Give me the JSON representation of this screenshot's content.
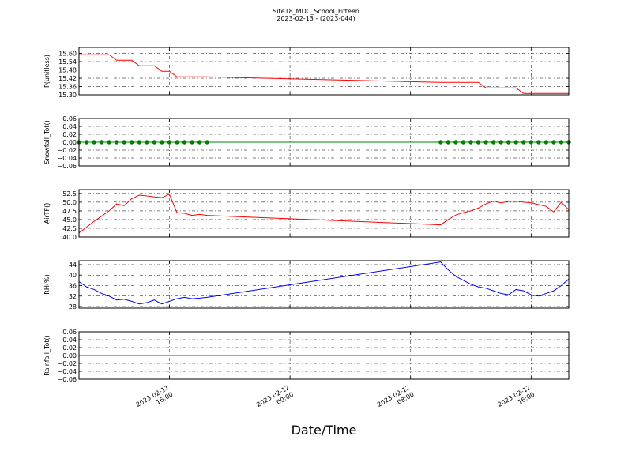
{
  "figure": {
    "title": "Site18_MDC_School_Fifteen",
    "subtitle": "2023-02-13 - (2023-044)",
    "xlabel": "Date/Time",
    "xlim": [
      "2023-02-11 10:00",
      "2023-02-12 18:30"
    ],
    "xticks": [
      {
        "value": "2023-02-11 16:00",
        "label": "2023-02-11\n16:00"
      },
      {
        "value": "2023-02-12 00:00",
        "label": "2023-02-12\n00:00"
      },
      {
        "value": "2023-02-12 08:00",
        "label": "2023-02-12\n08:00"
      },
      {
        "value": "2023-02-12 16:00",
        "label": "2023-02-12\n16:00"
      }
    ],
    "grid": true
  },
  "chart_data": [
    {
      "type": "line",
      "ylabel": "P(unitless)",
      "x": [
        "2023-02-11 10:00",
        "2023-02-11 10:30",
        "2023-02-11 11:00",
        "2023-02-11 11:30",
        "2023-02-11 12:00",
        "2023-02-11 12:30",
        "2023-02-11 13:00",
        "2023-02-11 13:30",
        "2023-02-11 14:00",
        "2023-02-11 14:30",
        "2023-02-11 15:00",
        "2023-02-11 15:30",
        "2023-02-11 16:00",
        "2023-02-11 16:30",
        "2023-02-11 17:00",
        "2023-02-11 17:30",
        "2023-02-11 18:00",
        "2023-02-11 18:30",
        "2023-02-12 10:00",
        "2023-02-12 10:30",
        "2023-02-12 11:00",
        "2023-02-12 11:30",
        "2023-02-12 12:00",
        "2023-02-12 12:30",
        "2023-02-12 13:00",
        "2023-02-12 13:30",
        "2023-02-12 14:00",
        "2023-02-12 14:30",
        "2023-02-12 15:00",
        "2023-02-12 15:30",
        "2023-02-12 16:00",
        "2023-02-12 16:30",
        "2023-02-12 17:00",
        "2023-02-12 17:30",
        "2023-02-12 18:00",
        "2023-02-12 18:30"
      ],
      "series": [
        {
          "color": "#ff0000",
          "markers": false,
          "values": [
            15.59,
            15.59,
            15.59,
            15.59,
            15.59,
            15.55,
            15.55,
            15.55,
            15.51,
            15.51,
            15.51,
            15.47,
            15.47,
            15.43,
            15.43,
            15.43,
            15.43,
            15.43,
            15.39,
            15.39,
            15.39,
            15.39,
            15.39,
            15.39,
            15.35,
            15.35,
            15.35,
            15.35,
            15.35,
            15.31,
            15.31,
            15.31,
            15.31,
            15.31,
            15.31,
            15.31
          ]
        }
      ],
      "ylim": [
        15.3,
        15.643
      ],
      "yticks": [
        {
          "value": 15.3,
          "label": "15.30"
        },
        {
          "value": 15.36,
          "label": "15.36"
        },
        {
          "value": 15.42,
          "label": "15.42"
        },
        {
          "value": 15.48,
          "label": "15.48"
        },
        {
          "value": 15.54,
          "label": "15.54"
        },
        {
          "value": 15.6,
          "label": "15.60"
        }
      ]
    },
    {
      "type": "line",
      "ylabel": "Snowfall_Tot()",
      "x": [
        "2023-02-11 10:00",
        "2023-02-11 10:30",
        "2023-02-11 11:00",
        "2023-02-11 11:30",
        "2023-02-11 12:00",
        "2023-02-11 12:30",
        "2023-02-11 13:00",
        "2023-02-11 13:30",
        "2023-02-11 14:00",
        "2023-02-11 14:30",
        "2023-02-11 15:00",
        "2023-02-11 15:30",
        "2023-02-11 16:00",
        "2023-02-11 16:30",
        "2023-02-11 17:00",
        "2023-02-11 17:30",
        "2023-02-11 18:00",
        "2023-02-11 18:30",
        "2023-02-12 10:00",
        "2023-02-12 10:30",
        "2023-02-12 11:00",
        "2023-02-12 11:30",
        "2023-02-12 12:00",
        "2023-02-12 12:30",
        "2023-02-12 13:00",
        "2023-02-12 13:30",
        "2023-02-12 14:00",
        "2023-02-12 14:30",
        "2023-02-12 15:00",
        "2023-02-12 15:30",
        "2023-02-12 16:00",
        "2023-02-12 16:30",
        "2023-02-12 17:00",
        "2023-02-12 17:30",
        "2023-02-12 18:00",
        "2023-02-12 18:30"
      ],
      "series": [
        {
          "color": "#008000",
          "markers": true,
          "values": [
            0,
            0,
            0,
            0,
            0,
            0,
            0,
            0,
            0,
            0,
            0,
            0,
            0,
            0,
            0,
            0,
            0,
            0,
            0,
            0,
            0,
            0,
            0,
            0,
            0,
            0,
            0,
            0,
            0,
            0,
            0,
            0,
            0,
            0,
            0,
            0
          ]
        }
      ],
      "ylim": [
        -0.06,
        0.06
      ],
      "yticks": [
        {
          "value": -0.06,
          "label": "−0.06"
        },
        {
          "value": -0.04,
          "label": "−0.04"
        },
        {
          "value": -0.02,
          "label": "−0.02"
        },
        {
          "value": 0,
          "label": "0.00"
        },
        {
          "value": 0.02,
          "label": "0.02"
        },
        {
          "value": 0.04,
          "label": "0.04"
        },
        {
          "value": 0.06,
          "label": "0.06"
        }
      ]
    },
    {
      "type": "line",
      "ylabel": "AirTF()",
      "x": [
        "2023-02-11 10:00",
        "2023-02-11 10:30",
        "2023-02-11 11:00",
        "2023-02-11 11:30",
        "2023-02-11 12:00",
        "2023-02-11 12:30",
        "2023-02-11 13:00",
        "2023-02-11 13:30",
        "2023-02-11 14:00",
        "2023-02-11 14:30",
        "2023-02-11 15:00",
        "2023-02-11 15:30",
        "2023-02-11 16:00",
        "2023-02-11 16:30",
        "2023-02-11 17:00",
        "2023-02-11 17:30",
        "2023-02-11 18:00",
        "2023-02-11 18:30",
        "2023-02-12 10:00",
        "2023-02-12 10:30",
        "2023-02-12 11:00",
        "2023-02-12 11:30",
        "2023-02-12 12:00",
        "2023-02-12 12:30",
        "2023-02-12 13:00",
        "2023-02-12 13:30",
        "2023-02-12 14:00",
        "2023-02-12 14:30",
        "2023-02-12 15:00",
        "2023-02-12 15:30",
        "2023-02-12 16:00",
        "2023-02-12 16:30",
        "2023-02-12 17:00",
        "2023-02-12 17:30",
        "2023-02-12 18:00",
        "2023-02-12 18:30"
      ],
      "series": [
        {
          "color": "#ff0000",
          "markers": false,
          "values": [
            41.2,
            42.8,
            44.5,
            46.0,
            47.5,
            49.5,
            49.0,
            51.0,
            52.0,
            51.8,
            51.5,
            51.3,
            52.3,
            47.0,
            46.8,
            46.2,
            46.5,
            46.2,
            43.5,
            45.0,
            46.3,
            47.0,
            47.5,
            48.3,
            49.5,
            50.3,
            49.8,
            50.2,
            50.3,
            50.0,
            49.8,
            49.3,
            48.8,
            47.2,
            50.0,
            47.8
          ]
        }
      ],
      "ylim": [
        40,
        53.6
      ],
      "yticks": [
        {
          "value": 40,
          "label": "40.0"
        },
        {
          "value": 42.5,
          "label": "42.5"
        },
        {
          "value": 45,
          "label": "45.0"
        },
        {
          "value": 47.5,
          "label": "47.5"
        },
        {
          "value": 50,
          "label": "50.0"
        },
        {
          "value": 52.5,
          "label": "52.5"
        }
      ]
    },
    {
      "type": "line",
      "ylabel": "RH(%)",
      "x": [
        "2023-02-11 10:00",
        "2023-02-11 10:30",
        "2023-02-11 11:00",
        "2023-02-11 11:30",
        "2023-02-11 12:00",
        "2023-02-11 12:30",
        "2023-02-11 13:00",
        "2023-02-11 13:30",
        "2023-02-11 14:00",
        "2023-02-11 14:30",
        "2023-02-11 15:00",
        "2023-02-11 15:30",
        "2023-02-11 16:00",
        "2023-02-11 16:30",
        "2023-02-11 17:00",
        "2023-02-11 17:30",
        "2023-02-11 18:00",
        "2023-02-11 18:30",
        "2023-02-12 10:00",
        "2023-02-12 10:30",
        "2023-02-12 11:00",
        "2023-02-12 11:30",
        "2023-02-12 12:00",
        "2023-02-12 12:30",
        "2023-02-12 13:00",
        "2023-02-12 13:30",
        "2023-02-12 14:00",
        "2023-02-12 14:30",
        "2023-02-12 15:00",
        "2023-02-12 15:30",
        "2023-02-12 16:00",
        "2023-02-12 16:30",
        "2023-02-12 17:00",
        "2023-02-12 17:30",
        "2023-02-12 18:00",
        "2023-02-12 18:30"
      ],
      "series": [
        {
          "color": "#0000ff",
          "markers": false,
          "values": [
            37.5,
            35.5,
            34.5,
            33.0,
            32.0,
            30.5,
            30.8,
            30.0,
            29.0,
            29.5,
            30.5,
            29.0,
            30.0,
            31.0,
            31.5,
            31.0,
            31.2,
            31.5,
            45.0,
            42.0,
            39.5,
            38.0,
            36.5,
            35.5,
            35.0,
            34.0,
            33.0,
            32.5,
            34.5,
            34.0,
            32.5,
            32.0,
            33.0,
            34.0,
            36.0,
            38.5
          ]
        }
      ],
      "ylim": [
        27.4,
        45.5
      ],
      "yticks": [
        28,
        32,
        36,
        40,
        44
      ]
    },
    {
      "type": "line",
      "ylabel": "Rainfall_Tot()",
      "x": [
        "2023-02-11 10:00",
        "2023-02-11 10:30",
        "2023-02-11 11:00",
        "2023-02-11 11:30",
        "2023-02-11 12:00",
        "2023-02-11 12:30",
        "2023-02-11 13:00",
        "2023-02-11 13:30",
        "2023-02-11 14:00",
        "2023-02-11 14:30",
        "2023-02-11 15:00",
        "2023-02-11 15:30",
        "2023-02-11 16:00",
        "2023-02-11 16:30",
        "2023-02-11 17:00",
        "2023-02-11 17:30",
        "2023-02-11 18:00",
        "2023-02-11 18:30",
        "2023-02-12 10:00",
        "2023-02-12 10:30",
        "2023-02-12 11:00",
        "2023-02-12 11:30",
        "2023-02-12 12:00",
        "2023-02-12 12:30",
        "2023-02-12 13:00",
        "2023-02-12 13:30",
        "2023-02-12 14:00",
        "2023-02-12 14:30",
        "2023-02-12 15:00",
        "2023-02-12 15:30",
        "2023-02-12 16:00",
        "2023-02-12 16:30",
        "2023-02-12 17:00",
        "2023-02-12 17:30",
        "2023-02-12 18:00",
        "2023-02-12 18:30"
      ],
      "series": [
        {
          "color": "#ff0000",
          "markers": false,
          "values": [
            0,
            0,
            0,
            0,
            0,
            0,
            0,
            0,
            0,
            0,
            0,
            0,
            0,
            0,
            0,
            0,
            0,
            0,
            0,
            0,
            0,
            0,
            0,
            0,
            0,
            0,
            0,
            0,
            0,
            0,
            0,
            0,
            0,
            0,
            0,
            0
          ]
        }
      ],
      "ylim": [
        -0.06,
        0.06
      ],
      "yticks": [
        {
          "value": -0.06,
          "label": "−0.06"
        },
        {
          "value": -0.04,
          "label": "−0.04"
        },
        {
          "value": -0.02,
          "label": "−0.02"
        },
        {
          "value": 0,
          "label": "0.00"
        },
        {
          "value": 0.02,
          "label": "0.02"
        },
        {
          "value": 0.04,
          "label": "0.04"
        },
        {
          "value": 0.06,
          "label": "0.06"
        }
      ]
    }
  ]
}
